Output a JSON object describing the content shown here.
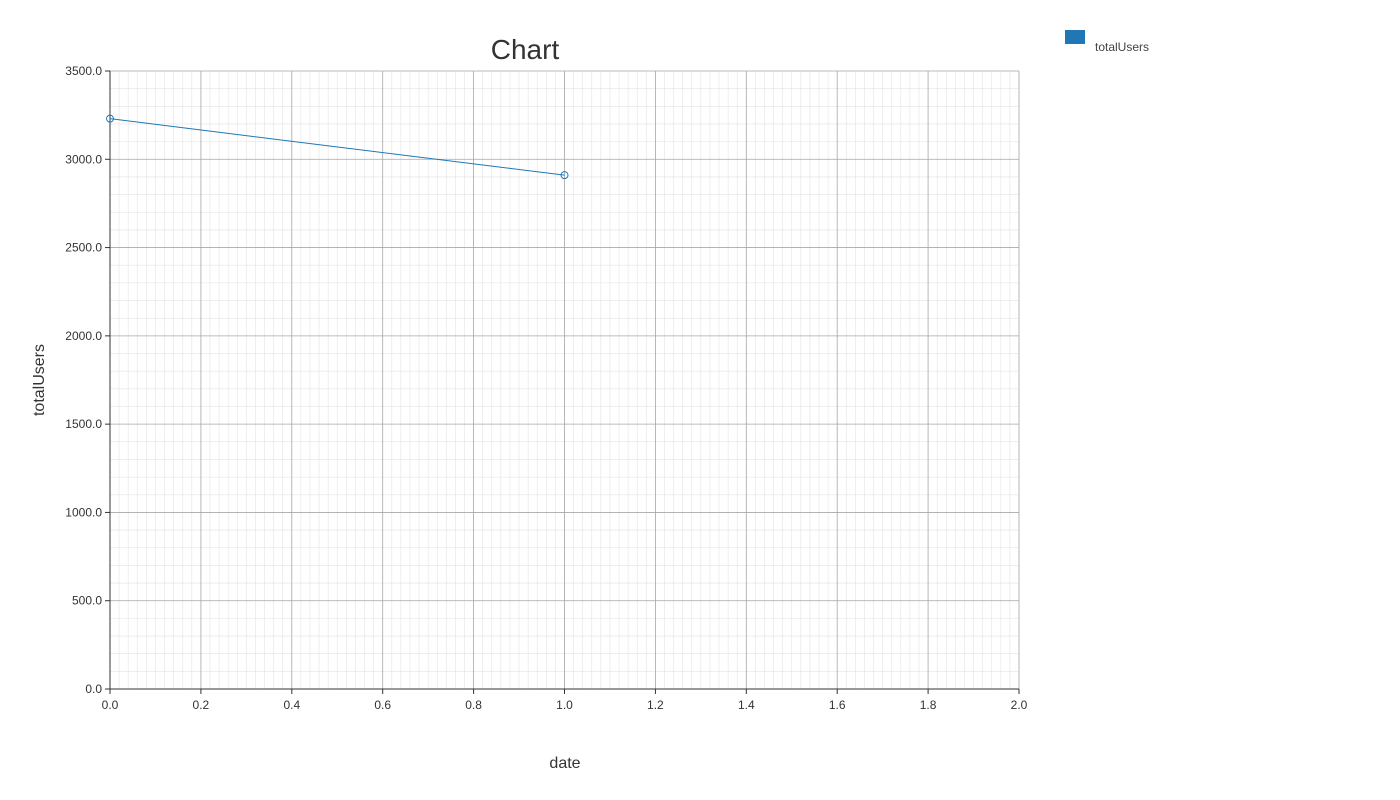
{
  "chart_data": {
    "type": "line",
    "title": "Chart",
    "xlabel": "date",
    "ylabel": "totalUsers",
    "xlim": [
      0,
      2
    ],
    "ylim": [
      0,
      3500
    ],
    "x_ticks": [
      "0.0",
      "0.2",
      "0.4",
      "0.6",
      "0.8",
      "1.0",
      "1.2",
      "1.4",
      "1.6",
      "1.8",
      "2.0"
    ],
    "y_ticks": [
      "0.0",
      "500.0",
      "1000.0",
      "1500.0",
      "2000.0",
      "2500.0",
      "3000.0",
      "3500.0"
    ],
    "grid": true,
    "legend_position": "top-right",
    "series": [
      {
        "name": "totalUsers",
        "color": "#1f77b4",
        "x": [
          0,
          1
        ],
        "y": [
          3230,
          2910
        ]
      }
    ]
  }
}
